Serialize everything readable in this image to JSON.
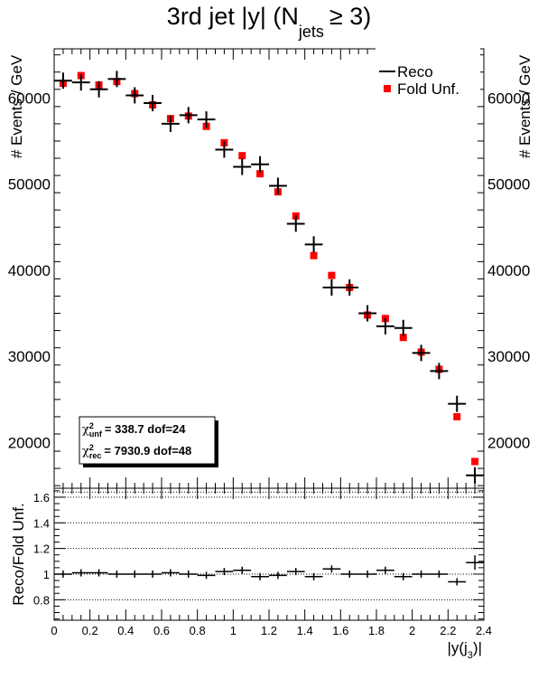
{
  "title": {
    "main": "3rd jet |y| (N",
    "sub": "jets",
    "rel": "≥ 3)"
  },
  "chart_data": [
    {
      "type": "scatter",
      "panel": "upper",
      "ylabel": "# Events / GeV",
      "ylim": [
        14700,
        65700
      ],
      "yticks": [
        20000,
        30000,
        40000,
        50000,
        60000
      ],
      "ytick_labels": [
        "20000",
        "30000",
        "40000",
        "50000",
        "60000"
      ],
      "xlim": [
        0,
        2.4
      ],
      "legend_position": "top-right",
      "legend": [
        {
          "label": "Reco",
          "marker": "cross",
          "color": "#000000"
        },
        {
          "label": "Fold Unf.",
          "marker": "square",
          "color": "#ff0000"
        }
      ],
      "x": [
        0.05,
        0.15,
        0.25,
        0.35,
        0.45,
        0.55,
        0.65,
        0.75,
        0.85,
        0.95,
        1.05,
        1.15,
        1.25,
        1.35,
        1.45,
        1.55,
        1.65,
        1.75,
        1.85,
        1.95,
        2.05,
        2.15,
        2.25,
        2.35
      ],
      "series": [
        {
          "name": "Reco",
          "color": "#000000",
          "values": [
            62000,
            61800,
            61000,
            62200,
            60300,
            59400,
            57000,
            58000,
            57500,
            54000,
            52000,
            52300,
            49800,
            45400,
            43000,
            38000,
            38000,
            35000,
            33500,
            33300,
            30400,
            28300,
            24500,
            16200
          ]
        },
        {
          "name": "Fold Unf.",
          "color": "#ff0000",
          "values": [
            61700,
            62600,
            61500,
            61900,
            60500,
            59200,
            57600,
            57900,
            56700,
            54800,
            53300,
            51200,
            49100,
            46300,
            41700,
            39400,
            38000,
            34800,
            34400,
            32200,
            30500,
            28500,
            23000,
            17800
          ]
        }
      ],
      "annotation": [
        {
          "sym": "χ",
          "sup": "2",
          "sub": "unf",
          "text": "=    338.7  dof=24"
        },
        {
          "sym": "χ",
          "sup": "2",
          "sub": "rec",
          "text": "=   7930.9  dof=48"
        }
      ]
    },
    {
      "type": "scatter",
      "panel": "lower",
      "ylabel": "Reco/Fold Unf.",
      "xlabel_pre": "|y(j",
      "xlabel_sub": "3",
      "xlabel_post": ")|",
      "ylim": [
        0.64,
        1.67
      ],
      "xlim": [
        0,
        2.4
      ],
      "yticks": [
        0.8,
        1,
        1.2,
        1.4,
        1.6
      ],
      "ytick_labels": [
        "0.8",
        "1",
        "1.2",
        "1.4",
        "1.6"
      ],
      "xticks": [
        0,
        0.2,
        0.4,
        0.6,
        0.8,
        1,
        1.2,
        1.4,
        1.6,
        1.8,
        2,
        2.2,
        2.4
      ],
      "xtick_labels": [
        "0",
        "0.2",
        "0.4",
        "0.6",
        "0.8",
        "1",
        "1.2",
        "1.4",
        "1.6",
        "1.8",
        "2",
        "2.2",
        "2.4"
      ],
      "grid_y": true,
      "x": [
        0.05,
        0.15,
        0.25,
        0.35,
        0.45,
        0.55,
        0.65,
        0.75,
        0.85,
        0.95,
        1.05,
        1.15,
        1.25,
        1.35,
        1.45,
        1.55,
        1.65,
        1.75,
        1.85,
        1.95,
        2.05,
        2.15,
        2.25,
        2.35
      ],
      "series": [
        {
          "name": "Reco/Fold Unf.",
          "color": "#000000",
          "values": [
            1.0,
            1.01,
            1.01,
            1.0,
            1.0,
            1.0,
            1.01,
            1.0,
            0.99,
            1.02,
            1.03,
            0.98,
            0.99,
            1.02,
            0.98,
            1.04,
            1.0,
            1.0,
            1.03,
            0.98,
            1.0,
            1.0,
            0.94,
            1.09
          ]
        }
      ]
    }
  ]
}
